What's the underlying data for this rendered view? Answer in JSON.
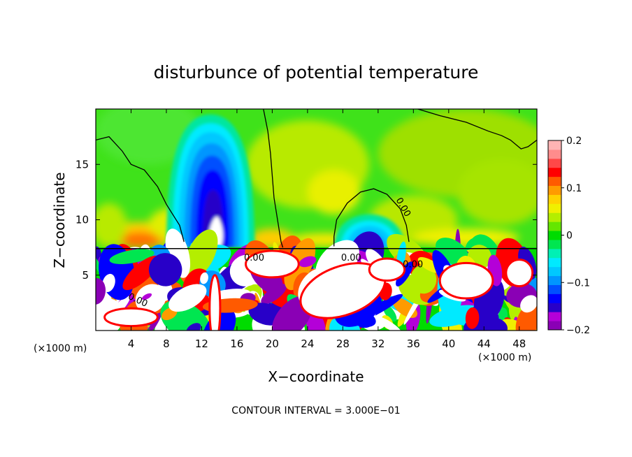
{
  "chart_data": {
    "type": "heatmap",
    "title": "disturbunce of potential temperature",
    "xlabel": "X−coordinate",
    "ylabel": "Z−coordinate",
    "x_unit_label": "(×1000 m)",
    "z_unit_label": "(×1000 m)",
    "xlim": [
      0,
      50
    ],
    "ylim": [
      0,
      20
    ],
    "xticks": [
      4,
      8,
      12,
      16,
      20,
      24,
      28,
      32,
      36,
      40,
      44,
      48
    ],
    "yticks": [
      5,
      10,
      15
    ],
    "contour_interval_text": "CONTOUR INTERVAL = 3.000E−01",
    "contour_label": "0.00",
    "colorbar": {
      "range": [
        -0.2,
        0.2
      ],
      "tick_labels": [
        "0.2",
        "0.1",
        "0",
        "−0.1",
        "−0.2"
      ],
      "tick_values": [
        0.2,
        0.1,
        0,
        -0.1,
        -0.2
      ],
      "colors": [
        "#8a00b5",
        "#b400d8",
        "#2800c8",
        "#0000ff",
        "#0050ff",
        "#0096ff",
        "#00c8ff",
        "#00eaff",
        "#00f0b4",
        "#00e650",
        "#00dc00",
        "#64e600",
        "#b4ee00",
        "#f0f000",
        "#ffd200",
        "#ff9b00",
        "#ff5a00",
        "#ff0000",
        "#ff4848",
        "#ff8c8c",
        "#ffb4b4"
      ]
    },
    "features": [
      {
        "kind": "negative_plume",
        "x_center": 13,
        "z_range": [
          7.5,
          19.5
        ],
        "min": -0.2
      },
      {
        "kind": "negative_plume",
        "x_center": 31,
        "z_range": [
          7.5,
          11
        ],
        "min": -0.1
      },
      {
        "kind": "positive_blob",
        "x_center": 5,
        "z_center": 8.3,
        "max": 0.1
      },
      {
        "kind": "positive_blob",
        "x_center": 20,
        "z_center": 8,
        "max": 0.08
      },
      {
        "kind": "turbulent_layer",
        "z_range": [
          0,
          7.5
        ]
      }
    ]
  }
}
